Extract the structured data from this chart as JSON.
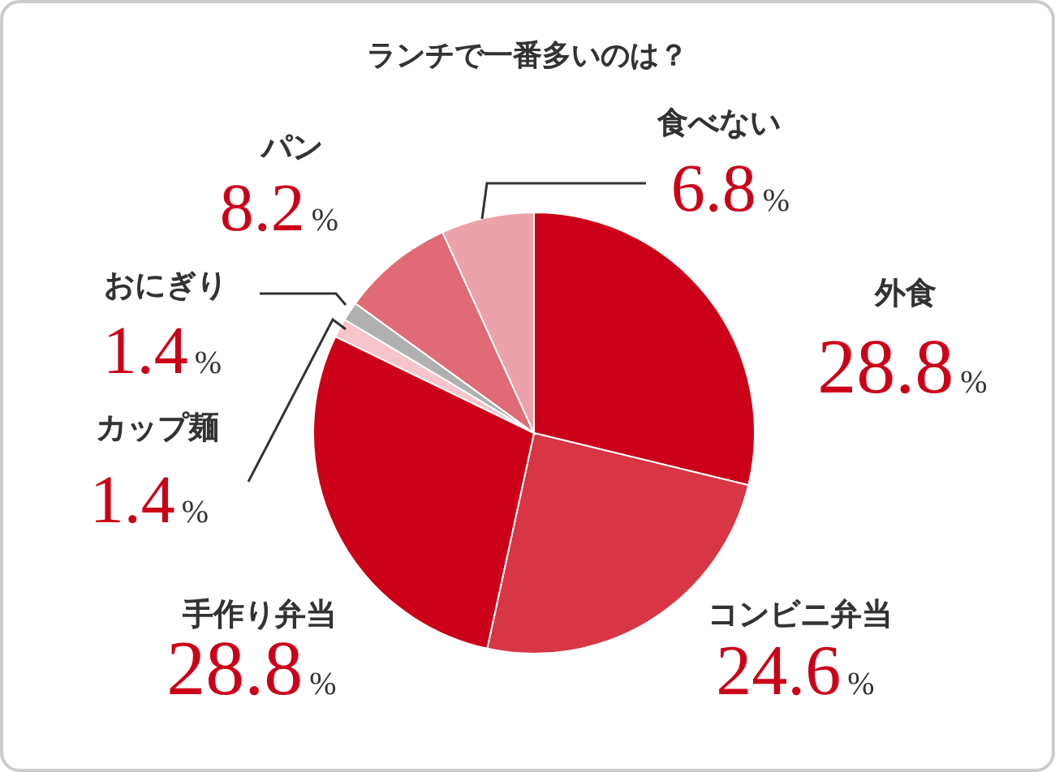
{
  "chart_data": {
    "type": "pie",
    "title": "ランチで一番多いのは？",
    "categories": [
      "外食",
      "コンビニ弁当",
      "手作り弁当",
      "カップ麺",
      "おにぎり",
      "パン",
      "食べない"
    ],
    "values": [
      28.8,
      24.6,
      28.8,
      1.4,
      1.4,
      8.2,
      6.8
    ],
    "colors": [
      "#cc0018",
      "#d83545",
      "#cc0018",
      "#f6c4cb",
      "#b0b0b0",
      "#e06a75",
      "#eca2aa"
    ],
    "value_labels": [
      "28.8%",
      "24.6%",
      "28.8%",
      "1.4%",
      "1.4%",
      "8.2%",
      "6.8%"
    ]
  }
}
